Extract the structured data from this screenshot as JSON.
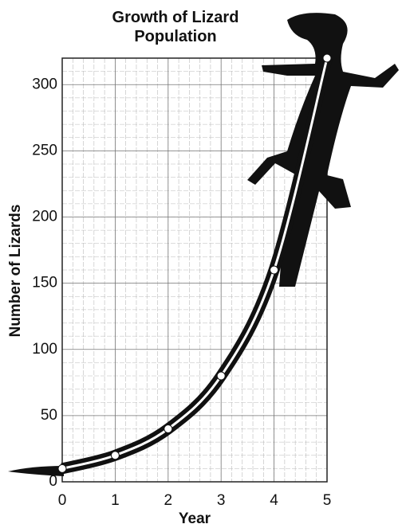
{
  "chart_data": {
    "type": "line",
    "title": "Growth of Lizard Population",
    "x_label": "Year",
    "y_label": "Number of Lizards",
    "x": [
      0,
      1,
      2,
      3,
      4,
      5
    ],
    "series": [
      {
        "name": "Number of Lizards",
        "color": "#ffffff",
        "values": [
          10,
          20,
          40,
          80,
          160,
          320
        ]
      }
    ],
    "xlim": [
      0,
      5
    ],
    "xticks": [
      0,
      1,
      2,
      3,
      4,
      5
    ],
    "ylim": [
      0,
      320
    ],
    "yticks": [
      0,
      50,
      100,
      150,
      200,
      250,
      300
    ],
    "grid": true
  }
}
